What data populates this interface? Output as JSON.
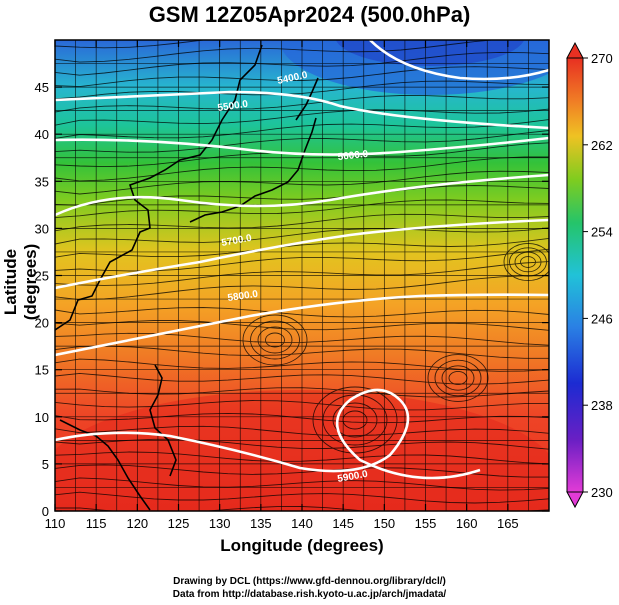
{
  "title": "GSM 12Z05Apr2024 (500.0hPa)",
  "axes": {
    "xlabel": "Longitude (degrees)",
    "ylabel": "Latitude  (degrees)",
    "xticks": [
      110,
      115,
      120,
      125,
      130,
      135,
      140,
      145,
      150,
      155,
      160,
      165
    ],
    "yticks": [
      0,
      5,
      10,
      15,
      20,
      25,
      30,
      35,
      40,
      45
    ],
    "xlim": [
      110,
      170
    ],
    "ylim": [
      0,
      50
    ]
  },
  "colorbar": {
    "ticks": [
      270,
      262,
      254,
      246,
      238,
      230
    ],
    "min": 230,
    "max": 270
  },
  "contours": [
    {
      "label": "5400.0"
    },
    {
      "label": "5500.0"
    },
    {
      "label": "5600.0"
    },
    {
      "label": "5700.0"
    },
    {
      "label": "5800.0"
    },
    {
      "label": "5900.0"
    }
  ],
  "credits": {
    "line1": "Drawing by DCL (https://www.gfd-dennou.org/library/dcl/)",
    "line2": "Data from http://database.rish.kyoto-u.ac.jp/arch/jmadata/"
  }
}
